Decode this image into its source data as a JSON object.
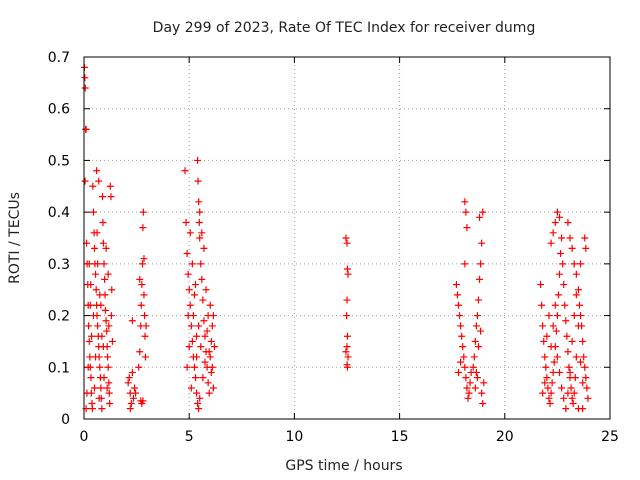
{
  "chart_data": {
    "type": "scatter",
    "title": "Day 299 of 2023, Rate Of TEC Index for receiver dumg",
    "xlabel": "GPS time / hours",
    "ylabel": "ROTI / TECUs",
    "xlim": [
      0,
      25
    ],
    "ylim": [
      0,
      0.7
    ],
    "x_ticks": [
      "0",
      "5",
      "10",
      "15",
      "20",
      "25"
    ],
    "y_ticks": [
      "0",
      "0.1",
      "0.2",
      "0.3",
      "0.4",
      "0.5",
      "0.6",
      "0.7"
    ],
    "grid": true,
    "marker": "plus",
    "color": "#ff0000",
    "series": [
      {
        "values": [
          [
            0.02,
            0.68
          ],
          [
            0.04,
            0.66
          ],
          [
            0.06,
            0.64
          ],
          [
            0.08,
            0.56
          ],
          [
            0.1,
            0.56
          ],
          [
            0.05,
            0.46
          ],
          [
            0.12,
            0.34
          ],
          [
            0.15,
            0.3
          ],
          [
            0.18,
            0.26
          ],
          [
            0.2,
            0.22
          ],
          [
            0.22,
            0.18
          ],
          [
            0.25,
            0.15
          ],
          [
            0.28,
            0.12
          ],
          [
            0.3,
            0.1
          ],
          [
            0.33,
            0.08
          ],
          [
            0.35,
            0.05
          ],
          [
            0.38,
            0.03
          ],
          [
            0.4,
            0.02
          ],
          [
            0.1,
            0.02
          ],
          [
            0.14,
            0.05
          ],
          [
            0.42,
            0.45
          ],
          [
            0.45,
            0.4
          ],
          [
            0.48,
            0.36
          ],
          [
            0.5,
            0.33
          ],
          [
            0.52,
            0.3
          ],
          [
            0.55,
            0.28
          ],
          [
            0.58,
            0.25
          ],
          [
            0.6,
            0.22
          ],
          [
            0.62,
            0.2
          ],
          [
            0.65,
            0.18
          ],
          [
            0.68,
            0.16
          ],
          [
            0.7,
            0.14
          ],
          [
            0.72,
            0.12
          ],
          [
            0.75,
            0.1
          ],
          [
            0.78,
            0.08
          ],
          [
            0.8,
            0.06
          ],
          [
            0.82,
            0.04
          ],
          [
            0.85,
            0.02
          ],
          [
            0.6,
            0.48
          ],
          [
            0.7,
            0.46
          ],
          [
            0.88,
            0.43
          ],
          [
            0.9,
            0.38
          ],
          [
            0.92,
            0.34
          ],
          [
            0.95,
            0.3
          ],
          [
            0.98,
            0.27
          ],
          [
            1.0,
            0.24
          ],
          [
            1.02,
            0.21
          ],
          [
            1.05,
            0.19
          ],
          [
            1.08,
            0.17
          ],
          [
            1.1,
            0.14
          ],
          [
            1.12,
            0.12
          ],
          [
            1.15,
            0.1
          ],
          [
            1.18,
            0.07
          ],
          [
            1.2,
            0.05
          ],
          [
            1.22,
            0.03
          ],
          [
            1.25,
            0.45
          ],
          [
            1.28,
            0.43
          ],
          [
            1.3,
            0.2
          ],
          [
            1.32,
            0.25
          ],
          [
            1.35,
            0.15
          ],
          [
            0.3,
            0.22
          ],
          [
            0.32,
            0.26
          ],
          [
            0.45,
            0.2
          ],
          [
            0.55,
            0.12
          ],
          [
            0.65,
            0.3
          ],
          [
            0.75,
            0.24
          ],
          [
            0.85,
            0.16
          ],
          [
            0.95,
            0.08
          ],
          [
            1.05,
            0.33
          ],
          [
            1.15,
            0.28
          ],
          [
            0.2,
            0.1
          ],
          [
            0.5,
            0.06
          ],
          [
            0.8,
            0.22
          ],
          [
            1.1,
            0.06
          ],
          [
            0.25,
            0.3
          ],
          [
            0.62,
            0.36
          ],
          [
            0.92,
            0.14
          ],
          [
            1.18,
            0.18
          ],
          [
            0.36,
            0.16
          ],
          [
            0.72,
            0.04
          ],
          [
            2.1,
            0.07
          ],
          [
            2.2,
            0.05
          ],
          [
            2.25,
            0.03
          ],
          [
            2.3,
            0.09
          ],
          [
            2.35,
            0.04
          ],
          [
            2.4,
            0.06
          ],
          [
            2.3,
            0.19
          ],
          [
            2.2,
            0.02
          ],
          [
            2.45,
            0.05
          ],
          [
            2.15,
            0.08
          ],
          [
            2.6,
            0.1
          ],
          [
            2.65,
            0.13
          ],
          [
            2.7,
            0.18
          ],
          [
            2.72,
            0.22
          ],
          [
            2.75,
            0.26
          ],
          [
            2.78,
            0.3
          ],
          [
            2.8,
            0.37
          ],
          [
            2.82,
            0.4
          ],
          [
            2.85,
            0.24
          ],
          [
            2.88,
            0.2
          ],
          [
            2.9,
            0.16
          ],
          [
            2.92,
            0.12
          ],
          [
            2.7,
            0.035
          ],
          [
            2.75,
            0.03
          ],
          [
            2.8,
            0.035
          ],
          [
            2.65,
            0.27
          ],
          [
            2.85,
            0.31
          ],
          [
            2.95,
            0.18
          ],
          [
            4.8,
            0.48
          ],
          [
            4.85,
            0.38
          ],
          [
            4.9,
            0.32
          ],
          [
            4.95,
            0.28
          ],
          [
            5.0,
            0.25
          ],
          [
            5.05,
            0.22
          ],
          [
            5.1,
            0.18
          ],
          [
            5.15,
            0.15
          ],
          [
            5.2,
            0.12
          ],
          [
            5.25,
            0.1
          ],
          [
            5.3,
            0.08
          ],
          [
            5.35,
            0.05
          ],
          [
            5.4,
            0.03
          ],
          [
            5.45,
            0.02
          ],
          [
            5.5,
            0.04
          ],
          [
            4.9,
            0.1
          ],
          [
            5.0,
            0.14
          ],
          [
            5.1,
            0.06
          ],
          [
            5.2,
            0.2
          ],
          [
            5.3,
            0.26
          ],
          [
            5.4,
            0.5
          ],
          [
            5.42,
            0.46
          ],
          [
            5.45,
            0.42
          ],
          [
            5.48,
            0.38
          ],
          [
            5.5,
            0.35
          ],
          [
            5.55,
            0.3
          ],
          [
            5.6,
            0.27
          ],
          [
            5.65,
            0.23
          ],
          [
            5.7,
            0.19
          ],
          [
            5.75,
            0.16
          ],
          [
            5.8,
            0.13
          ],
          [
            5.85,
            0.1
          ],
          [
            5.9,
            0.07
          ],
          [
            5.95,
            0.05
          ],
          [
            6.0,
            0.12
          ],
          [
            6.05,
            0.15
          ],
          [
            6.1,
            0.18
          ],
          [
            6.15,
            0.2
          ],
          [
            6.2,
            0.14
          ],
          [
            5.5,
            0.4
          ],
          [
            5.6,
            0.36
          ],
          [
            5.7,
            0.33
          ],
          [
            5.8,
            0.25
          ],
          [
            5.9,
            0.2
          ],
          [
            6.0,
            0.22
          ],
          [
            6.1,
            0.1
          ],
          [
            5.35,
            0.16
          ],
          [
            5.25,
            0.24
          ],
          [
            5.15,
            0.3
          ],
          [
            5.05,
            0.36
          ],
          [
            4.95,
            0.2
          ],
          [
            5.65,
            0.08
          ],
          [
            5.75,
            0.11
          ],
          [
            5.85,
            0.17
          ],
          [
            5.95,
            0.13
          ],
          [
            6.05,
            0.09
          ],
          [
            6.15,
            0.06
          ],
          [
            5.55,
            0.14
          ],
          [
            5.45,
            0.18
          ],
          [
            5.35,
            0.12
          ],
          [
            12.45,
            0.35
          ],
          [
            12.5,
            0.34
          ],
          [
            12.52,
            0.29
          ],
          [
            12.55,
            0.28
          ],
          [
            12.5,
            0.23
          ],
          [
            12.48,
            0.2
          ],
          [
            12.52,
            0.16
          ],
          [
            12.5,
            0.14
          ],
          [
            12.45,
            0.13
          ],
          [
            12.55,
            0.12
          ],
          [
            12.5,
            0.105
          ],
          [
            12.52,
            0.1
          ],
          [
            17.7,
            0.26
          ],
          [
            17.75,
            0.24
          ],
          [
            17.8,
            0.22
          ],
          [
            17.85,
            0.2
          ],
          [
            17.9,
            0.18
          ],
          [
            17.95,
            0.16
          ],
          [
            18.0,
            0.14
          ],
          [
            18.05,
            0.12
          ],
          [
            18.1,
            0.1
          ],
          [
            18.15,
            0.08
          ],
          [
            18.2,
            0.06
          ],
          [
            18.25,
            0.04
          ],
          [
            18.3,
            0.05
          ],
          [
            18.35,
            0.07
          ],
          [
            18.4,
            0.09
          ],
          [
            18.1,
            0.42
          ],
          [
            18.15,
            0.4
          ],
          [
            18.2,
            0.37
          ],
          [
            18.1,
            0.3
          ],
          [
            17.9,
            0.11
          ],
          [
            18.5,
            0.1
          ],
          [
            18.55,
            0.12
          ],
          [
            18.6,
            0.15
          ],
          [
            18.65,
            0.18
          ],
          [
            18.7,
            0.2
          ],
          [
            18.75,
            0.23
          ],
          [
            18.8,
            0.27
          ],
          [
            18.85,
            0.3
          ],
          [
            18.9,
            0.34
          ],
          [
            18.95,
            0.4
          ],
          [
            18.8,
            0.39
          ],
          [
            18.7,
            0.08
          ],
          [
            18.6,
            0.06
          ],
          [
            18.9,
            0.05
          ],
          [
            18.95,
            0.03
          ],
          [
            19.0,
            0.07
          ],
          [
            18.65,
            0.09
          ],
          [
            18.75,
            0.14
          ],
          [
            18.85,
            0.17
          ],
          [
            17.8,
            0.09
          ],
          [
            21.7,
            0.26
          ],
          [
            21.75,
            0.22
          ],
          [
            21.8,
            0.18
          ],
          [
            21.85,
            0.15
          ],
          [
            21.9,
            0.12
          ],
          [
            21.95,
            0.1
          ],
          [
            22.0,
            0.08
          ],
          [
            22.05,
            0.06
          ],
          [
            22.1,
            0.04
          ],
          [
            22.15,
            0.03
          ],
          [
            22.2,
            0.05
          ],
          [
            22.25,
            0.07
          ],
          [
            22.3,
            0.09
          ],
          [
            22.35,
            0.11
          ],
          [
            22.4,
            0.14
          ],
          [
            22.45,
            0.17
          ],
          [
            22.5,
            0.2
          ],
          [
            22.55,
            0.24
          ],
          [
            22.6,
            0.28
          ],
          [
            22.65,
            0.32
          ],
          [
            22.2,
            0.34
          ],
          [
            22.3,
            0.36
          ],
          [
            22.4,
            0.38
          ],
          [
            22.5,
            0.4
          ],
          [
            22.6,
            0.39
          ],
          [
            22.7,
            0.35
          ],
          [
            22.75,
            0.3
          ],
          [
            22.8,
            0.26
          ],
          [
            22.85,
            0.22
          ],
          [
            22.9,
            0.19
          ],
          [
            22.95,
            0.16
          ],
          [
            23.0,
            0.13
          ],
          [
            23.05,
            0.1
          ],
          [
            23.1,
            0.08
          ],
          [
            23.15,
            0.06
          ],
          [
            23.2,
            0.04
          ],
          [
            23.25,
            0.03
          ],
          [
            23.3,
            0.05
          ],
          [
            23.35,
            0.08
          ],
          [
            23.4,
            0.12
          ],
          [
            23.0,
            0.38
          ],
          [
            23.1,
            0.35
          ],
          [
            23.2,
            0.33
          ],
          [
            23.3,
            0.3
          ],
          [
            23.4,
            0.28
          ],
          [
            23.5,
            0.25
          ],
          [
            23.55,
            0.22
          ],
          [
            23.6,
            0.2
          ],
          [
            23.65,
            0.18
          ],
          [
            23.7,
            0.15
          ],
          [
            23.75,
            0.12
          ],
          [
            23.8,
            0.1
          ],
          [
            23.85,
            0.08
          ],
          [
            23.9,
            0.06
          ],
          [
            23.95,
            0.04
          ],
          [
            23.8,
            0.35
          ],
          [
            23.85,
            0.33
          ],
          [
            23.6,
            0.3
          ],
          [
            23.5,
            0.02
          ],
          [
            23.7,
            0.02
          ],
          [
            21.8,
            0.05
          ],
          [
            21.9,
            0.07
          ],
          [
            22.0,
            0.16
          ],
          [
            22.1,
            0.2
          ],
          [
            22.2,
            0.14
          ],
          [
            22.3,
            0.18
          ],
          [
            22.4,
            0.22
          ],
          [
            22.5,
            0.12
          ],
          [
            22.6,
            0.09
          ],
          [
            22.7,
            0.06
          ],
          [
            22.8,
            0.04
          ],
          [
            22.9,
            0.02
          ],
          [
            23.0,
            0.05
          ],
          [
            23.1,
            0.09
          ],
          [
            23.2,
            0.15
          ],
          [
            23.3,
            0.2
          ],
          [
            23.4,
            0.24
          ],
          [
            23.5,
            0.18
          ],
          [
            23.6,
            0.11
          ],
          [
            23.7,
            0.07
          ]
        ]
      }
    ]
  }
}
